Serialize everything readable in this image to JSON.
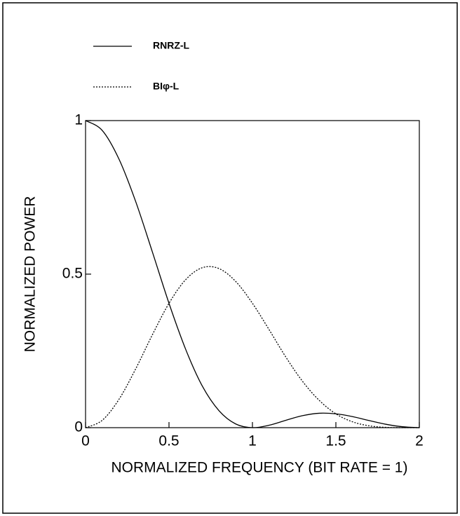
{
  "chart_data": {
    "type": "line",
    "xlabel": "NORMALIZED FREQUENCY (BIT RATE = 1)",
    "ylabel": "NORMALIZED POWER",
    "x": [
      0,
      0.1,
      0.2,
      0.3,
      0.4,
      0.5,
      0.6,
      0.7,
      0.8,
      0.9,
      1.0,
      1.1,
      1.2,
      1.3,
      1.4,
      1.5,
      1.6,
      1.7,
      1.8,
      1.9,
      2.0
    ],
    "series": [
      {
        "name": "RNRZ-L",
        "color": "#000000",
        "style": "solid",
        "values": [
          1,
          0.968,
          0.875,
          0.737,
          0.573,
          0.405,
          0.255,
          0.135,
          0.055,
          0.012,
          0,
          0.008,
          0.024,
          0.039,
          0.047,
          0.045,
          0.036,
          0.023,
          0.011,
          0.003,
          0
        ]
      },
      {
        "name": "BIφ-L",
        "color": "#000000",
        "style": "dotted",
        "values": [
          0,
          0.024,
          0.092,
          0.191,
          0.302,
          0.405,
          0.482,
          0.521,
          0.518,
          0.476,
          0.405,
          0.319,
          0.23,
          0.151,
          0.089,
          0.045,
          0.019,
          0.006,
          0.001,
          0,
          0
        ]
      }
    ],
    "xlim": [
      0,
      2
    ],
    "xticks": [
      0,
      0.5,
      1,
      1.5,
      2
    ],
    "ylim": [
      0,
      1
    ],
    "yticks": [
      0,
      0.5,
      1
    ],
    "legend": "top-left",
    "grid": false
  }
}
